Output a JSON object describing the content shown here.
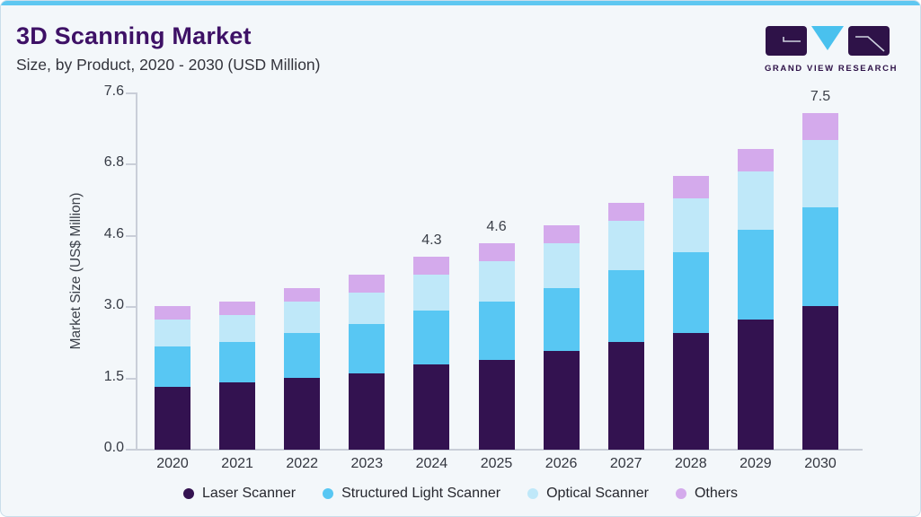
{
  "header": {
    "title": "3D Scanning Market",
    "subtitle": "Size, by Product, 2020 - 2030 (USD Million)"
  },
  "logo": {
    "brand": "GRAND VIEW RESEARCH"
  },
  "theme": {
    "top_strip": "#5ec7f1",
    "card_background": "#f3f7fa",
    "card_border": "#c9deeb",
    "title_color": "#3e1166",
    "logo_purple": "#2e1248",
    "logo_blue": "#49c1ee",
    "axis_line": "#c9ced8"
  },
  "chart_data": {
    "type": "bar",
    "stacked": true,
    "title": "3D Scanning Market Size, by Product, 2020 - 2030 (USD Million)",
    "xlabel": "",
    "ylabel": "Market Size (US$ Million)",
    "yticks": [
      "0.0",
      "1.5",
      "3.0",
      "4.6",
      "6.8",
      "7.6"
    ],
    "grid": false,
    "legend_position": "bottom",
    "categories": [
      "2020",
      "2021",
      "2022",
      "2023",
      "2024",
      "2025",
      "2026",
      "2027",
      "2028",
      "2029",
      "2030"
    ],
    "series": [
      {
        "name": "Laser Scanner",
        "color": "#331250",
        "values": [
          1.4,
          1.5,
          1.6,
          1.7,
          1.9,
          2.0,
          2.2,
          2.4,
          2.6,
          2.9,
          3.2
        ]
      },
      {
        "name": "Structured Light Scanner",
        "color": "#58c7f3",
        "values": [
          0.9,
          0.9,
          1.0,
          1.1,
          1.2,
          1.3,
          1.4,
          1.6,
          1.8,
          2.0,
          2.2
        ]
      },
      {
        "name": "Optical Scanner",
        "color": "#bfe8f9",
        "values": [
          0.6,
          0.6,
          0.7,
          0.7,
          0.8,
          0.9,
          1.0,
          1.1,
          1.2,
          1.3,
          1.5
        ]
      },
      {
        "name": "Others",
        "color": "#d4aaec",
        "values": [
          0.3,
          0.3,
          0.3,
          0.4,
          0.4,
          0.4,
          0.4,
          0.4,
          0.5,
          0.5,
          0.6
        ]
      }
    ],
    "totals": [
      3.2,
      3.3,
      3.6,
      3.9,
      4.3,
      4.6,
      5.0,
      5.5,
      6.1,
      6.7,
      7.5
    ],
    "bar_labels": {
      "2024": "4.3",
      "2025": "4.6",
      "2030": "7.5"
    }
  }
}
